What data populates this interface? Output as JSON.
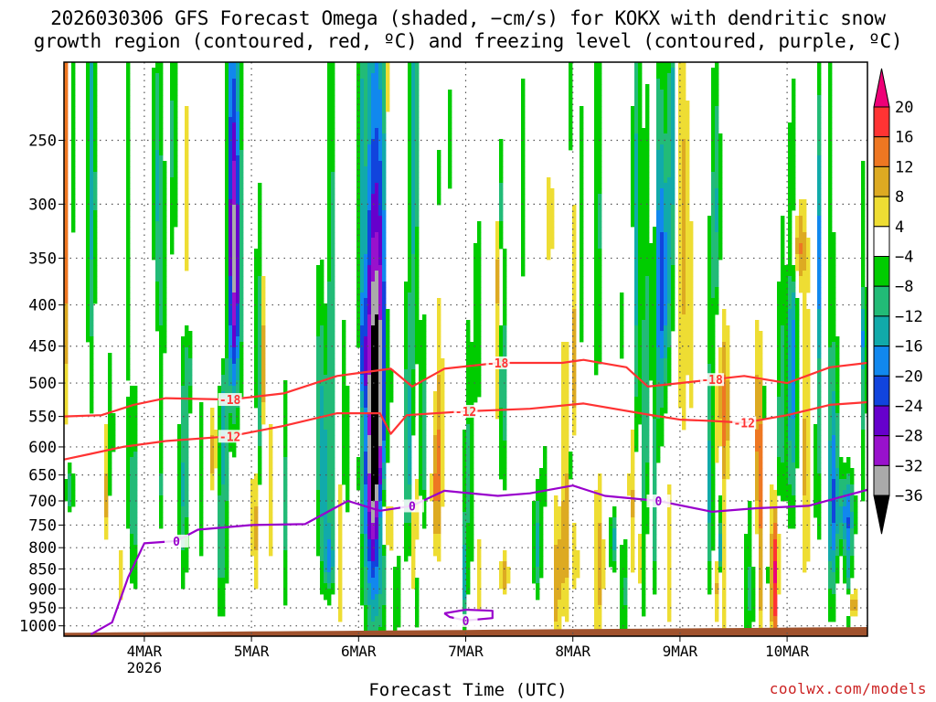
{
  "title_line1": "2026030306 GFS Forecast Omega (shaded, −cm/s) for KOKX with dendritic snow",
  "title_line2": "growth region (contoured, red, ºC) and freezing level (contoured, purple, ºC)",
  "xlabel": "Forecast Time (UTC)",
  "credit": "coolwx.com/models",
  "colors": {
    "dgz_contour": "#ff3333",
    "freezing_contour": "#9900cc",
    "terrain": "#a0522d",
    "grid": "#555555"
  },
  "chart_data": {
    "type": "heatmap",
    "title": "2026030306 GFS Forecast Omega (shaded, −cm/s) for KOKX with dendritic snow growth region (contoured, red, ºC) and freezing level (contoured, purple, ºC)",
    "xlabel": "Forecast Time (UTC)",
    "ylabel": "",
    "y_scale": "log-pressure (inverted)",
    "x_range": [
      3.25,
      10.75
    ],
    "y_range_hPa": [
      1030,
      200
    ],
    "x_ticks": [
      {
        "value": 4,
        "label": "4MAR",
        "sublabel": "2026"
      },
      {
        "value": 5,
        "label": "5MAR"
      },
      {
        "value": 6,
        "label": "6MAR"
      },
      {
        "value": 7,
        "label": "7MAR"
      },
      {
        "value": 8,
        "label": "8MAR"
      },
      {
        "value": 9,
        "label": "9MAR"
      },
      {
        "value": 10,
        "label": "10MAR"
      }
    ],
    "y_ticks": [
      250,
      300,
      350,
      400,
      450,
      500,
      550,
      600,
      650,
      700,
      750,
      800,
      850,
      900,
      950,
      1000
    ],
    "grid": true,
    "colorbar": {
      "position": "right",
      "levels": [
        20,
        16,
        12,
        8,
        4,
        -4,
        -8,
        -12,
        -16,
        -20,
        -24,
        -28,
        -32,
        -36
      ],
      "bins": [
        {
          "color": "#ee0077"
        },
        {
          "color": "#ff3333"
        },
        {
          "color": "#ee7722"
        },
        {
          "color": "#ddaa22"
        },
        {
          "color": "#eedd33"
        },
        {
          "color": "#ffffff"
        },
        {
          "color": "#00cc00"
        },
        {
          "color": "#22bb77"
        },
        {
          "color": "#11aaaa"
        },
        {
          "color": "#1188ee"
        },
        {
          "color": "#1144dd"
        },
        {
          "color": "#6600cc"
        },
        {
          "color": "#9911cc"
        },
        {
          "color": "#aaaaaa"
        },
        {
          "color": "#000000"
        }
      ]
    },
    "contours": [
      {
        "name": "-18",
        "color": "red",
        "label": "-18",
        "points": [
          [
            3.25,
            550
          ],
          [
            3.6,
            548
          ],
          [
            3.9,
            532
          ],
          [
            4.2,
            522
          ],
          [
            4.8,
            524
          ],
          [
            5.3,
            515
          ],
          [
            5.8,
            490
          ],
          [
            6.3,
            480
          ],
          [
            6.5,
            505
          ],
          [
            6.8,
            480
          ],
          [
            7.3,
            472
          ],
          [
            7.9,
            472
          ],
          [
            8.1,
            468
          ],
          [
            8.5,
            478
          ],
          [
            8.7,
            505
          ],
          [
            9.0,
            500
          ],
          [
            9.3,
            495
          ],
          [
            9.6,
            490
          ],
          [
            10.0,
            500
          ],
          [
            10.4,
            478
          ],
          [
            10.75,
            472
          ]
        ]
      },
      {
        "name": "-12",
        "color": "red",
        "label": "-12",
        "points": [
          [
            3.25,
            622
          ],
          [
            3.5,
            612
          ],
          [
            3.8,
            600
          ],
          [
            4.2,
            590
          ],
          [
            4.8,
            582
          ],
          [
            5.3,
            565
          ],
          [
            5.8,
            545
          ],
          [
            6.2,
            545
          ],
          [
            6.3,
            578
          ],
          [
            6.45,
            548
          ],
          [
            7.0,
            542
          ],
          [
            7.6,
            538
          ],
          [
            8.1,
            530
          ],
          [
            8.7,
            547
          ],
          [
            9.0,
            555
          ],
          [
            9.3,
            557
          ],
          [
            9.6,
            560
          ],
          [
            10.0,
            548
          ],
          [
            10.4,
            532
          ],
          [
            10.75,
            528
          ]
        ]
      },
      {
        "name": "0",
        "color": "purple",
        "label": "0",
        "points": [
          [
            3.5,
            1025
          ],
          [
            3.7,
            990
          ],
          [
            3.85,
            870
          ],
          [
            4.0,
            790
          ],
          [
            4.3,
            785
          ],
          [
            4.5,
            760
          ],
          [
            5.0,
            750
          ],
          [
            5.5,
            748
          ],
          [
            5.9,
            700
          ],
          [
            6.2,
            720
          ],
          [
            6.5,
            710
          ],
          [
            6.8,
            680
          ],
          [
            7.3,
            690
          ],
          [
            7.6,
            685
          ],
          [
            8.0,
            670
          ],
          [
            8.3,
            690
          ],
          [
            8.8,
            700
          ],
          [
            9.3,
            722
          ],
          [
            9.7,
            715
          ],
          [
            10.2,
            710
          ],
          [
            10.75,
            678
          ]
        ]
      },
      {
        "name": "0",
        "color": "purple",
        "label": "0",
        "points": [
          [
            6.8,
            965
          ],
          [
            7.0,
            955
          ],
          [
            7.25,
            958
          ],
          [
            7.25,
            978
          ],
          [
            7.0,
            985
          ],
          [
            6.85,
            975
          ],
          [
            6.8,
            965
          ]
        ]
      }
    ],
    "omega_features": [
      {
        "x": 6.15,
        "width": 0.18,
        "p_top": 240,
        "p_bot": 900,
        "value": -36
      },
      {
        "x": 6.25,
        "width": 0.14,
        "p_top": 650,
        "p_bot": 880,
        "value": 16
      },
      {
        "x": 4.85,
        "width": 0.1,
        "p_top": 200,
        "p_bot": 500,
        "value": -24
      },
      {
        "x": 5.7,
        "width": 0.14,
        "p_top": 450,
        "p_bot": 850,
        "value": -16
      },
      {
        "x": 8.85,
        "width": 0.12,
        "p_top": 250,
        "p_bot": 500,
        "value": -16
      },
      {
        "x": 9.4,
        "width": 0.12,
        "p_top": 430,
        "p_bot": 650,
        "value": 12
      },
      {
        "x": 10.1,
        "width": 0.12,
        "p_top": 300,
        "p_bot": 380,
        "value": 12
      },
      {
        "x": 10.55,
        "width": 0.15,
        "p_top": 650,
        "p_bot": 800,
        "value": -12
      },
      {
        "x": 10.6,
        "width": 0.1,
        "p_top": 900,
        "p_bot": 980,
        "value": 12
      }
    ]
  }
}
